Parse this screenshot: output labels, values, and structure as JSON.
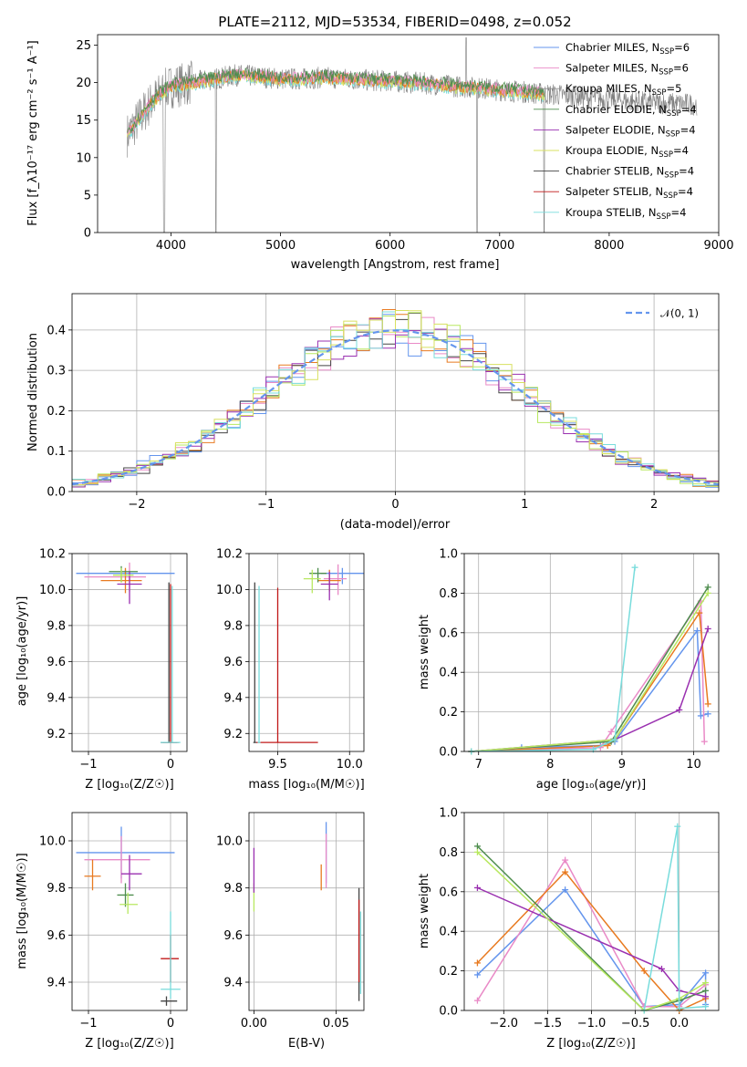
{
  "colors": {
    "chabrier_miles": "#6495ed",
    "salpeter_miles": "#e98ac7",
    "kroupa_miles": "#8b8b8b",
    "chabrier_elodie": "#4e8d4e",
    "salpeter_elodie": "#9a30b0",
    "kroupa_elodie": "#d8e060",
    "chabrier_stelib": "#444444",
    "salpeter_stelib": "#c01818",
    "kroupa_stelib": "#78dcdc",
    "orange": "#e87a20",
    "lime": "#b8e860",
    "spectrum_data": "#808080",
    "normal_curve": "#6495ed"
  },
  "chart_data": [
    {
      "id": "spectrum",
      "type": "line",
      "title": "PLATE=2112, MJD=53534, FIBERID=0498, z=0.052",
      "xlabel": "wavelength [Angstrom, rest frame]",
      "ylabel": "Flux [f_λ10⁻¹⁷ erg cm⁻² s⁻¹ A⁻¹]",
      "xlim": [
        3330,
        9000
      ],
      "ylim": [
        0,
        26.4
      ],
      "xticks": [
        "4000",
        "5000",
        "6000",
        "7000",
        "8000",
        "9000"
      ],
      "yticks": [
        "0",
        "5",
        "10",
        "15",
        "20",
        "25"
      ],
      "grid": false,
      "legend_position": "top-right",
      "legend": [
        {
          "label": "Chabrier MILES, N",
          "sub": "SSP",
          "tail": "=6",
          "color": "chabrier_miles"
        },
        {
          "label": "Salpeter MILES, N",
          "sub": "SSP",
          "tail": "=6",
          "color": "salpeter_miles"
        },
        {
          "label": "Kroupa MILES, N",
          "sub": "SSP",
          "tail": "=5",
          "color": "kroupa_miles"
        },
        {
          "label": "Chabrier ELODIE, N",
          "sub": "SSP",
          "tail": "=4",
          "color": "chabrier_elodie"
        },
        {
          "label": "Salpeter ELODIE, N",
          "sub": "SSP",
          "tail": "=4",
          "color": "salpeter_elodie"
        },
        {
          "label": "Kroupa ELODIE, N",
          "sub": "SSP",
          "tail": "=4",
          "color": "kroupa_elodie"
        },
        {
          "label": "Chabrier STELIB, N",
          "sub": "SSP",
          "tail": "=4",
          "color": "chabrier_stelib"
        },
        {
          "label": "Salpeter STELIB, N",
          "sub": "SSP",
          "tail": "=4",
          "color": "salpeter_stelib"
        },
        {
          "label": "Kroupa STELIB, N",
          "sub": "SSP",
          "tail": "=4",
          "color": "kroupa_stelib"
        }
      ],
      "continuum": [
        [
          3600,
          13
        ],
        [
          3700,
          15
        ],
        [
          3800,
          17
        ],
        [
          3900,
          18.5
        ],
        [
          4000,
          19.5
        ],
        [
          4200,
          20
        ],
        [
          4400,
          20.5
        ],
        [
          4600,
          21
        ],
        [
          4800,
          20.8
        ],
        [
          5000,
          20.5
        ],
        [
          5200,
          20.5
        ],
        [
          5400,
          20.7
        ],
        [
          5600,
          20.5
        ],
        [
          5800,
          20.3
        ],
        [
          6000,
          20.2
        ],
        [
          6200,
          20
        ],
        [
          6400,
          19.8
        ],
        [
          6600,
          19.5
        ],
        [
          6800,
          19.3
        ],
        [
          7000,
          19
        ],
        [
          7200,
          18.8
        ],
        [
          7400,
          18.5
        ],
        [
          7600,
          18.3
        ],
        [
          7800,
          18
        ],
        [
          8000,
          17.8
        ],
        [
          8200,
          17.5
        ],
        [
          8400,
          17.3
        ],
        [
          8600,
          17.2
        ],
        [
          8800,
          17.1
        ],
        [
          9000,
          17
        ]
      ],
      "model_end_wavelength": 7410,
      "data_end_wavelength": 8800
    },
    {
      "id": "residuals",
      "type": "histogram",
      "xlabel": "(data-model)/error",
      "ylabel": "Normed distribution",
      "xlim": [
        -2.5,
        2.5
      ],
      "ylim": [
        0,
        0.49
      ],
      "xticks": [
        "−2",
        "−1",
        "0",
        "1",
        "2"
      ],
      "yticks": [
        "0.0",
        "0.1",
        "0.2",
        "0.3",
        "0.4"
      ],
      "grid": true,
      "legend_position": "top-right",
      "legend": [
        {
          "label": "𝒩(0, 1)",
          "color": "normal_curve",
          "style": "dashed"
        }
      ],
      "bin_width": 0.1,
      "series_colors": [
        "chabrier_miles",
        "salpeter_miles",
        "orange",
        "chabrier_stelib",
        "lime",
        "salpeter_elodie",
        "kroupa_stelib",
        "kroupa_elodie"
      ]
    },
    {
      "id": "age_vs_Z",
      "type": "scatter",
      "xlabel": "Z [log₁₀(Z/Z☉)]",
      "ylabel": "age  [log₁₀(age/yr)]",
      "xlim": [
        -1.2,
        0.2
      ],
      "ylim": [
        9.1,
        10.2
      ],
      "xticks": [
        "−1",
        "0"
      ],
      "yticks": [
        "9.2",
        "9.4",
        "9.6",
        "9.8",
        "10.0",
        "10.2"
      ],
      "grid": true,
      "points": [
        {
          "x": -0.55,
          "xlo": -1.15,
          "xhi": 0.05,
          "y": 10.09,
          "ylo": 10.07,
          "yhi": 10.11,
          "color": "chabrier_miles"
        },
        {
          "x": -0.5,
          "xlo": -1.05,
          "xhi": -0.3,
          "y": 10.07,
          "ylo": 9.99,
          "yhi": 10.15,
          "color": "salpeter_miles"
        },
        {
          "x": -0.55,
          "xlo": -0.85,
          "xhi": -0.35,
          "y": 10.05,
          "ylo": 9.98,
          "yhi": 10.12,
          "color": "orange"
        },
        {
          "x": -0.6,
          "xlo": -0.75,
          "xhi": -0.4,
          "y": 10.1,
          "ylo": 10.04,
          "yhi": 10.13,
          "color": "chabrier_elodie"
        },
        {
          "x": -0.5,
          "xlo": -0.65,
          "xhi": -0.35,
          "y": 10.03,
          "ylo": 9.92,
          "yhi": 10.1,
          "color": "salpeter_elodie"
        },
        {
          "x": -0.6,
          "xlo": -0.7,
          "xhi": -0.45,
          "y": 10.08,
          "ylo": 10.04,
          "yhi": 10.12,
          "color": "lime"
        },
        {
          "x": -0.02,
          "xlo": -0.12,
          "xhi": 0.08,
          "y": 9.15,
          "ylo": 9.15,
          "yhi": 10.04,
          "color": "chabrier_stelib"
        },
        {
          "x": 0.0,
          "xlo": -0.1,
          "xhi": 0.1,
          "y": 9.15,
          "ylo": 9.15,
          "yhi": 10.03,
          "color": "salpeter_stelib"
        },
        {
          "x": 0.02,
          "xlo": -0.12,
          "xhi": 0.12,
          "y": 9.15,
          "ylo": 9.15,
          "yhi": 10.02,
          "color": "kroupa_stelib"
        }
      ]
    },
    {
      "id": "age_vs_mass",
      "type": "scatter",
      "xlabel": "mass [log₁₀(M/M☉)]",
      "ylabel": "",
      "xlim": [
        9.3,
        10.1
      ],
      "ylim": [
        9.1,
        10.2
      ],
      "xticks": [
        "9.5",
        "10.0"
      ],
      "yticks": [
        "9.2",
        "9.4",
        "9.6",
        "9.8",
        "10.0",
        "10.2"
      ],
      "grid": true,
      "points": [
        {
          "x": 9.95,
          "xlo": 9.8,
          "xhi": 10.1,
          "y": 10.09,
          "ylo": 10.03,
          "yhi": 10.12,
          "color": "chabrier_miles"
        },
        {
          "x": 9.92,
          "xlo": 9.82,
          "xhi": 9.98,
          "y": 10.06,
          "ylo": 9.97,
          "yhi": 10.14,
          "color": "salpeter_miles"
        },
        {
          "x": 9.86,
          "xlo": 9.78,
          "xhi": 9.94,
          "y": 10.05,
          "ylo": 9.99,
          "yhi": 10.11,
          "color": "orange"
        },
        {
          "x": 9.78,
          "xlo": 9.72,
          "xhi": 9.84,
          "y": 10.09,
          "ylo": 10.04,
          "yhi": 10.12,
          "color": "chabrier_elodie"
        },
        {
          "x": 9.86,
          "xlo": 9.8,
          "xhi": 9.92,
          "y": 10.03,
          "ylo": 9.94,
          "yhi": 10.1,
          "color": "salpeter_elodie"
        },
        {
          "x": 9.74,
          "xlo": 9.68,
          "xhi": 9.8,
          "y": 10.06,
          "ylo": 9.98,
          "yhi": 10.11,
          "color": "lime"
        },
        {
          "x": 9.34,
          "xlo": 9.33,
          "xhi": 9.35,
          "y": 9.15,
          "ylo": 9.15,
          "yhi": 10.04,
          "color": "chabrier_stelib"
        },
        {
          "x": 9.5,
          "xlo": 9.35,
          "xhi": 9.78,
          "y": 9.15,
          "ylo": 9.15,
          "yhi": 10.01,
          "color": "salpeter_stelib"
        },
        {
          "x": 9.37,
          "xlo": 9.36,
          "xhi": 9.38,
          "y": 9.15,
          "ylo": 9.15,
          "yhi": 10.02,
          "color": "kroupa_stelib"
        }
      ]
    },
    {
      "id": "massweight_vs_age",
      "type": "line",
      "xlabel": "age  [log₁₀(age/yr)]",
      "ylabel": "mass weight",
      "xlim": [
        6.8,
        10.35
      ],
      "ylim": [
        0,
        1.0
      ],
      "xticks": [
        "7",
        "8",
        "9",
        "10"
      ],
      "yticks": [
        "0.0",
        "0.2",
        "0.4",
        "0.6",
        "0.8",
        "1.0"
      ],
      "grid": true,
      "series": [
        {
          "color": "chabrier_miles",
          "x": [
            6.9,
            7.6,
            8.7,
            8.9,
            10.05,
            10.1,
            10.2
          ],
          "y": [
            0.0,
            0.02,
            0.03,
            0.05,
            0.61,
            0.18,
            0.19
          ]
        },
        {
          "color": "salpeter_miles",
          "x": [
            6.9,
            8.7,
            8.85,
            10.1,
            10.15
          ],
          "y": [
            0.0,
            0.02,
            0.1,
            0.76,
            0.05
          ]
        },
        {
          "color": "orange",
          "x": [
            6.9,
            8.8,
            8.9,
            10.08,
            10.2
          ],
          "y": [
            0.0,
            0.03,
            0.06,
            0.7,
            0.24
          ]
        },
        {
          "color": "chabrier_elodie",
          "x": [
            6.9,
            8.85,
            10.2
          ],
          "y": [
            0.0,
            0.05,
            0.83
          ]
        },
        {
          "color": "salpeter_elodie",
          "x": [
            6.9,
            8.9,
            9.8,
            10.2
          ],
          "y": [
            0.0,
            0.06,
            0.21,
            0.62
          ]
        },
        {
          "color": "lime",
          "x": [
            6.9,
            8.9,
            10.2
          ],
          "y": [
            0.0,
            0.06,
            0.8
          ]
        },
        {
          "color": "kroupa_stelib",
          "x": [
            6.9,
            8.6,
            8.9,
            9.18
          ],
          "y": [
            0.0,
            0.01,
            0.06,
            0.93
          ]
        }
      ]
    },
    {
      "id": "mass_vs_Z",
      "type": "scatter",
      "xlabel": "Z [log₁₀(Z/Z☉)]",
      "ylabel": "mass [log₁₀(M/M☉)]",
      "xlim": [
        -1.2,
        0.2
      ],
      "ylim": [
        9.28,
        10.12
      ],
      "xticks": [
        "−1",
        "0"
      ],
      "yticks": [
        "9.4",
        "9.6",
        "9.8",
        "10.0"
      ],
      "grid": true,
      "points": [
        {
          "x": -0.6,
          "xlo": -1.15,
          "xhi": 0.05,
          "y": 9.95,
          "ylo": 9.84,
          "yhi": 10.06,
          "color": "chabrier_miles"
        },
        {
          "x": -0.6,
          "xlo": -1.05,
          "xhi": -0.25,
          "y": 9.92,
          "ylo": 9.82,
          "yhi": 10.02,
          "color": "salpeter_miles"
        },
        {
          "x": -0.95,
          "xlo": -1.05,
          "xhi": -0.85,
          "y": 9.85,
          "ylo": 9.79,
          "yhi": 9.92,
          "color": "orange"
        },
        {
          "x": -0.55,
          "xlo": -0.65,
          "xhi": -0.45,
          "y": 9.77,
          "ylo": 9.72,
          "yhi": 9.82,
          "color": "chabrier_elodie"
        },
        {
          "x": -0.5,
          "xlo": -0.6,
          "xhi": -0.35,
          "y": 9.86,
          "ylo": 9.79,
          "yhi": 9.94,
          "color": "salpeter_elodie"
        },
        {
          "x": -0.52,
          "xlo": -0.62,
          "xhi": -0.4,
          "y": 9.73,
          "ylo": 9.69,
          "yhi": 9.78,
          "color": "lime"
        },
        {
          "x": -0.05,
          "xlo": -0.12,
          "xhi": 0.08,
          "y": 9.32,
          "ylo": 9.3,
          "yhi": 9.34,
          "color": "chabrier_stelib"
        },
        {
          "x": 0.0,
          "xlo": -0.12,
          "xhi": 0.1,
          "y": 9.5,
          "ylo": 9.4,
          "yhi": 9.6,
          "color": "salpeter_stelib"
        },
        {
          "x": 0.0,
          "xlo": -0.12,
          "xhi": 0.12,
          "y": 9.37,
          "ylo": 9.33,
          "yhi": 9.7,
          "color": "kroupa_stelib"
        }
      ]
    },
    {
      "id": "mass_vs_ebv",
      "type": "scatter",
      "xlabel": "E(B-V)",
      "ylabel": "",
      "xlim": [
        -0.003,
        0.067
      ],
      "ylim": [
        9.28,
        10.12
      ],
      "xticks": [
        "0.00",
        "0.05"
      ],
      "yticks": [
        "9.4",
        "9.6",
        "9.8",
        "10.0"
      ],
      "grid": true,
      "points": [
        {
          "x": 0.044,
          "xlo": 0.044,
          "xhi": 0.044,
          "y": 9.95,
          "ylo": 9.82,
          "yhi": 10.08,
          "color": "chabrier_miles"
        },
        {
          "x": 0.044,
          "xlo": 0.044,
          "xhi": 0.044,
          "y": 9.92,
          "ylo": 9.8,
          "yhi": 10.03,
          "color": "salpeter_miles"
        },
        {
          "x": 0.041,
          "xlo": 0.041,
          "xhi": 0.041,
          "y": 9.85,
          "ylo": 9.79,
          "yhi": 9.9,
          "color": "orange"
        },
        {
          "x": 0.0,
          "xlo": 0.0,
          "xhi": 0.0,
          "y": 9.77,
          "ylo": 9.7,
          "yhi": 9.82,
          "color": "lime"
        },
        {
          "x": 0.0,
          "xlo": 0.0,
          "xhi": 0.0,
          "y": 9.86,
          "ylo": 9.78,
          "yhi": 9.97,
          "color": "salpeter_elodie"
        },
        {
          "x": 0.064,
          "xlo": 0.064,
          "xhi": 0.064,
          "y": 9.5,
          "ylo": 9.32,
          "yhi": 9.8,
          "color": "chabrier_stelib"
        },
        {
          "x": 0.064,
          "xlo": 0.064,
          "xhi": 0.064,
          "y": 9.55,
          "ylo": 9.4,
          "yhi": 9.75,
          "color": "salpeter_stelib"
        },
        {
          "x": 0.065,
          "xlo": 0.065,
          "xhi": 0.065,
          "y": 9.45,
          "ylo": 9.35,
          "yhi": 9.7,
          "color": "kroupa_stelib"
        }
      ]
    },
    {
      "id": "massweight_vs_Z",
      "type": "line",
      "xlabel": "Z [log₁₀(Z/Z☉)]",
      "ylabel": "mass weight",
      "xlim": [
        -2.45,
        0.45
      ],
      "ylim": [
        0,
        1.0
      ],
      "xticks": [
        "−2.0",
        "−1.5",
        "−1.0",
        "−0.5",
        "0.0"
      ],
      "yticks": [
        "0.0",
        "0.2",
        "0.4",
        "0.6",
        "0.8",
        "1.0"
      ],
      "grid": true,
      "series": [
        {
          "color": "chabrier_miles",
          "x": [
            -2.3,
            -1.3,
            -0.4,
            0.0,
            0.3,
            0.3
          ],
          "y": [
            0.18,
            0.61,
            0.02,
            0.03,
            0.19,
            0.03
          ]
        },
        {
          "color": "salpeter_miles",
          "x": [
            -2.3,
            -1.3,
            -0.4,
            0.0,
            0.3
          ],
          "y": [
            0.05,
            0.76,
            0.02,
            0.02,
            0.13
          ]
        },
        {
          "color": "orange",
          "x": [
            -2.3,
            -1.3,
            -0.4,
            0.0,
            0.3
          ],
          "y": [
            0.24,
            0.7,
            0.2,
            0.0,
            0.06
          ]
        },
        {
          "color": "chabrier_elodie",
          "x": [
            -2.3,
            -0.4,
            0.0,
            0.3
          ],
          "y": [
            0.83,
            0.0,
            0.05,
            0.1
          ]
        },
        {
          "color": "salpeter_elodie",
          "x": [
            -2.3,
            -0.2,
            0.0,
            0.3
          ],
          "y": [
            0.62,
            0.21,
            0.1,
            0.07
          ]
        },
        {
          "color": "lime",
          "x": [
            -2.3,
            -0.4,
            0.0,
            0.3
          ],
          "y": [
            0.8,
            0.0,
            0.06,
            0.14
          ]
        },
        {
          "color": "kroupa_stelib",
          "x": [
            -0.4,
            -0.02,
            0.0,
            0.3
          ],
          "y": [
            0.0,
            0.93,
            0.01,
            0.02
          ]
        }
      ]
    }
  ]
}
